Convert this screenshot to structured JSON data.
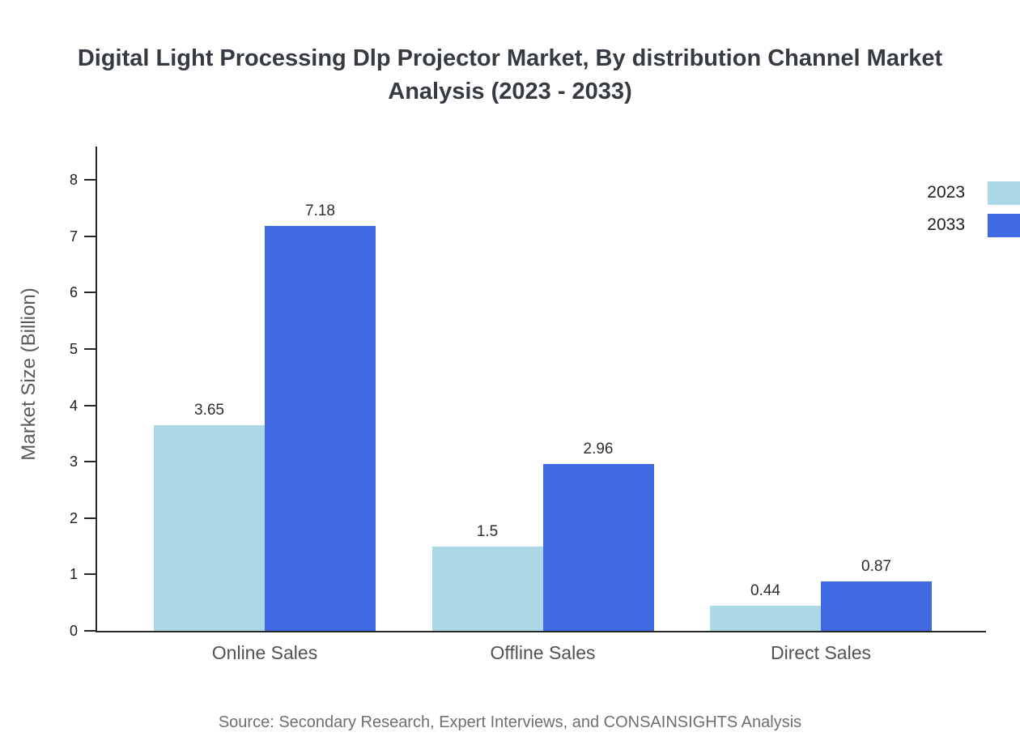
{
  "source": "Source: Secondary Research, Expert Interviews, and CONSAINSIGHTS Analysis",
  "chart_data": {
    "type": "bar",
    "title": "Digital Light Processing Dlp Projector Market, By distribution Channel Market Analysis (2023 - 2033)",
    "categories": [
      "Online Sales",
      "Offline Sales",
      "Direct Sales"
    ],
    "series": [
      {
        "name": "2023",
        "color": "#ADD8E6",
        "values": [
          3.65,
          1.5,
          0.44
        ]
      },
      {
        "name": "2033",
        "color": "#4169E1",
        "values": [
          7.18,
          2.96,
          0.87
        ]
      }
    ],
    "xlabel": "",
    "ylabel": "Market Size (Billion)",
    "ylim": [
      0,
      8
    ],
    "yticks": [
      0,
      1,
      2,
      3,
      4,
      5,
      6,
      7,
      8
    ],
    "grid": false,
    "legend_position": "top-right"
  }
}
